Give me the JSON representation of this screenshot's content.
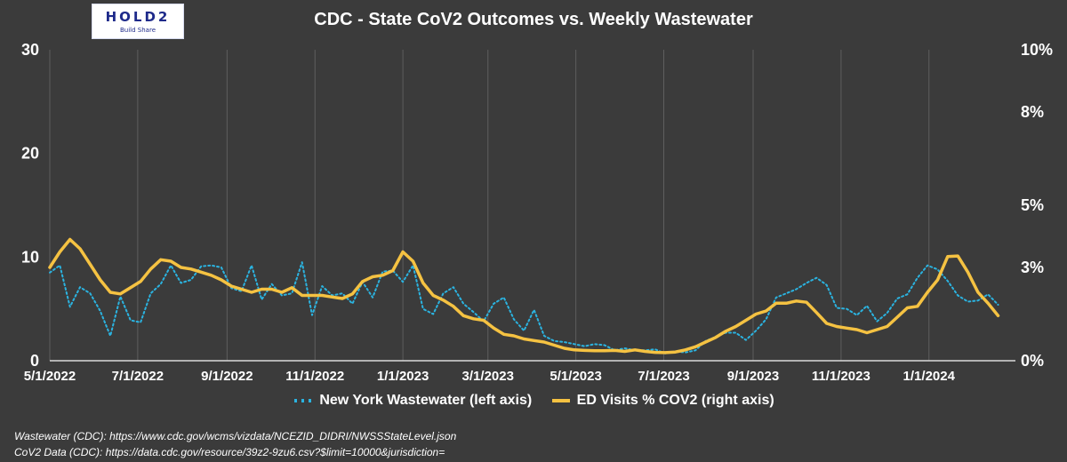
{
  "logo": {
    "text": "HOLD2",
    "subtitle": "Build Share"
  },
  "sources": {
    "line1": "Wastewater (CDC): https://www.cdc.gov/wcms/vizdata/NCEZID_DIDRI/NWSSStateLevel.json",
    "line2": "CoV2 Data (CDC): https://data.cdc.gov/resource/39z2-9zu6.csv?$limit=10000&jurisdiction="
  },
  "chart_data": {
    "type": "line",
    "title": "CDC - State CoV2 Outcomes vs. Weekly Wastewater",
    "x_ticks": [
      "5/1/2022",
      "7/1/2022",
      "9/1/2022",
      "11/1/2022",
      "1/1/2023",
      "3/1/2023",
      "5/1/2023",
      "7/1/2023",
      "9/1/2023",
      "11/1/2023",
      "1/1/2024"
    ],
    "x_range": [
      "5/1/2022",
      "3/1/2024"
    ],
    "y_left": {
      "range": [
        0,
        30
      ],
      "ticks": [
        "0",
        "10",
        "20",
        "30"
      ]
    },
    "y_right": {
      "range": [
        0,
        10
      ],
      "unit": "%",
      "ticks": [
        "0%",
        "3%",
        "5%",
        "8%",
        "10%"
      ]
    },
    "grid": "vertical",
    "legend_position": "bottom",
    "series": [
      {
        "name": "New York Wastewater (left axis)",
        "axis": "left",
        "style": "dotted",
        "color": "#2bb3e0",
        "x": [
          "2022-05-01",
          "2022-05-08",
          "2022-05-15",
          "2022-05-22",
          "2022-05-29",
          "2022-06-05",
          "2022-06-12",
          "2022-06-19",
          "2022-06-26",
          "2022-07-03",
          "2022-07-10",
          "2022-07-17",
          "2022-07-24",
          "2022-07-31",
          "2022-08-07",
          "2022-08-14",
          "2022-08-21",
          "2022-08-28",
          "2022-09-04",
          "2022-09-11",
          "2022-09-18",
          "2022-09-25",
          "2022-10-02",
          "2022-10-09",
          "2022-10-16",
          "2022-10-23",
          "2022-10-30",
          "2022-11-06",
          "2022-11-13",
          "2022-11-20",
          "2022-11-27",
          "2022-12-04",
          "2022-12-11",
          "2022-12-18",
          "2022-12-25",
          "2023-01-01",
          "2023-01-08",
          "2023-01-15",
          "2023-01-22",
          "2023-01-29",
          "2023-02-05",
          "2023-02-12",
          "2023-02-19",
          "2023-02-26",
          "2023-03-05",
          "2023-03-12",
          "2023-03-19",
          "2023-03-26",
          "2023-04-02",
          "2023-04-09",
          "2023-04-16",
          "2023-04-23",
          "2023-04-30",
          "2023-05-07",
          "2023-05-14",
          "2023-05-21",
          "2023-05-28",
          "2023-06-04",
          "2023-06-11",
          "2023-06-18",
          "2023-06-25",
          "2023-07-02",
          "2023-07-09",
          "2023-07-16",
          "2023-07-23",
          "2023-07-30",
          "2023-08-06",
          "2023-08-13",
          "2023-08-20",
          "2023-08-27",
          "2023-09-03",
          "2023-09-10",
          "2023-09-17",
          "2023-09-24",
          "2023-10-01",
          "2023-10-08",
          "2023-10-15",
          "2023-10-22",
          "2023-10-29",
          "2023-11-05",
          "2023-11-12",
          "2023-11-19",
          "2023-11-26",
          "2023-12-03",
          "2023-12-10",
          "2023-12-17",
          "2023-12-24",
          "2023-12-31",
          "2024-01-07",
          "2024-01-14",
          "2024-01-21",
          "2024-01-28",
          "2024-02-04",
          "2024-02-11",
          "2024-02-18"
        ],
        "values": [
          8.5,
          9.2,
          5.2,
          7.1,
          6.5,
          4.8,
          2.4,
          6.2,
          3.9,
          3.7,
          6.5,
          7.4,
          9.2,
          7.5,
          7.8,
          9.1,
          9.2,
          9.0,
          7.0,
          6.7,
          9.2,
          5.9,
          7.4,
          6.3,
          6.5,
          9.5,
          4.4,
          7.2,
          6.3,
          6.5,
          5.5,
          7.6,
          6.1,
          8.6,
          8.7,
          7.6,
          9.2,
          5.0,
          4.5,
          6.5,
          7.1,
          5.5,
          4.7,
          3.8,
          5.5,
          6.1,
          4.0,
          2.9,
          4.9,
          2.4,
          1.9,
          1.8,
          1.6,
          1.4,
          1.6,
          1.5,
          1.0,
          1.2,
          1.0,
          1.0,
          1.1,
          0.7,
          0.9,
          0.8,
          1.0,
          1.9,
          2.3,
          2.7,
          2.7,
          2.0,
          2.9,
          4.0,
          6.1,
          6.5,
          6.9,
          7.5,
          8.0,
          7.3,
          5.1,
          5.0,
          4.4,
          5.3,
          3.8,
          4.6,
          6.0,
          6.4,
          8.0,
          9.2,
          8.8,
          7.7,
          6.3,
          5.7,
          5.8,
          6.4,
          5.4
        ]
      },
      {
        "name": "ED Visits % COV2 (right axis)",
        "axis": "right",
        "style": "solid",
        "color": "#f5c242",
        "x": [
          "2022-05-01",
          "2022-05-08",
          "2022-05-15",
          "2022-05-22",
          "2022-05-29",
          "2022-06-05",
          "2022-06-12",
          "2022-06-19",
          "2022-06-26",
          "2022-07-03",
          "2022-07-10",
          "2022-07-17",
          "2022-07-24",
          "2022-07-31",
          "2022-08-07",
          "2022-08-14",
          "2022-08-21",
          "2022-08-28",
          "2022-09-04",
          "2022-09-11",
          "2022-09-18",
          "2022-09-25",
          "2022-10-02",
          "2022-10-09",
          "2022-10-16",
          "2022-10-23",
          "2022-10-30",
          "2022-11-06",
          "2022-11-13",
          "2022-11-20",
          "2022-11-27",
          "2022-12-04",
          "2022-12-11",
          "2022-12-18",
          "2022-12-25",
          "2023-01-01",
          "2023-01-08",
          "2023-01-15",
          "2023-01-22",
          "2023-01-29",
          "2023-02-05",
          "2023-02-12",
          "2023-02-19",
          "2023-02-26",
          "2023-03-05",
          "2023-03-12",
          "2023-03-19",
          "2023-03-26",
          "2023-04-02",
          "2023-04-09",
          "2023-04-16",
          "2023-04-23",
          "2023-04-30",
          "2023-05-07",
          "2023-05-14",
          "2023-05-21",
          "2023-05-28",
          "2023-06-04",
          "2023-06-11",
          "2023-06-18",
          "2023-06-25",
          "2023-07-02",
          "2023-07-09",
          "2023-07-16",
          "2023-07-23",
          "2023-07-30",
          "2023-08-06",
          "2023-08-13",
          "2023-08-20",
          "2023-08-27",
          "2023-09-03",
          "2023-09-10",
          "2023-09-17",
          "2023-09-24",
          "2023-10-01",
          "2023-10-08",
          "2023-10-15",
          "2023-10-22",
          "2023-10-29",
          "2023-11-05",
          "2023-11-12",
          "2023-11-19",
          "2023-11-26",
          "2023-12-03",
          "2023-12-10",
          "2023-12-17",
          "2023-12-24",
          "2023-12-31",
          "2024-01-07",
          "2024-01-14",
          "2024-01-21",
          "2024-01-28",
          "2024-02-04",
          "2024-02-11",
          "2024-02-18"
        ],
        "values": [
          3.0,
          3.5,
          3.9,
          3.6,
          3.1,
          2.6,
          2.2,
          2.15,
          2.35,
          2.55,
          2.95,
          3.25,
          3.2,
          3.0,
          2.95,
          2.85,
          2.75,
          2.6,
          2.4,
          2.3,
          2.2,
          2.3,
          2.3,
          2.2,
          2.35,
          2.1,
          2.1,
          2.1,
          2.05,
          2.0,
          2.15,
          2.55,
          2.7,
          2.75,
          2.9,
          3.5,
          3.2,
          2.5,
          2.1,
          1.95,
          1.75,
          1.45,
          1.35,
          1.3,
          1.05,
          0.85,
          0.8,
          0.7,
          0.65,
          0.6,
          0.5,
          0.4,
          0.35,
          0.33,
          0.32,
          0.32,
          0.33,
          0.3,
          0.35,
          0.3,
          0.27,
          0.26,
          0.28,
          0.35,
          0.45,
          0.6,
          0.75,
          0.95,
          1.1,
          1.3,
          1.5,
          1.6,
          1.85,
          1.85,
          1.92,
          1.88,
          1.55,
          1.2,
          1.1,
          1.05,
          1.0,
          0.9,
          1.0,
          1.1,
          1.4,
          1.7,
          1.75,
          2.2,
          2.6,
          3.35,
          3.37,
          2.85,
          2.2,
          1.85,
          1.45
        ]
      }
    ]
  }
}
